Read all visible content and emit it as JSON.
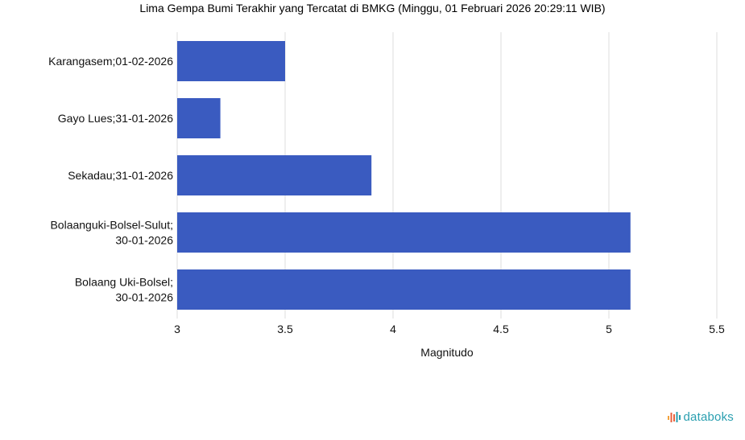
{
  "colors": {
    "bar": "#3a5bc0",
    "grid": "#dcdcdc",
    "brand": "#2a9fb0"
  },
  "brand": {
    "icon": "databoks-logo-icon",
    "text": "databoks"
  },
  "chart_data": {
    "type": "bar",
    "orientation": "horizontal",
    "title": "Lima Gempa Bumi Terakhir yang Tercatat di BMKG (Minggu, 01 Februari 2026 20:29:11 WIB)",
    "xlabel": "Magnitudo",
    "ylabel": "",
    "categories": [
      [
        "Karangasem;01-02-2026"
      ],
      [
        "Gayo Lues;31-01-2026"
      ],
      [
        "Sekadau;31-01-2026"
      ],
      [
        "Bolaanguki-Bolsel-Sulut;",
        "30-01-2026"
      ],
      [
        "Bolaang Uki-Bolsel;",
        "30-01-2026"
      ]
    ],
    "values": [
      3.5,
      3.2,
      3.9,
      5.1,
      5.1
    ],
    "xlim": [
      3,
      5.5
    ],
    "xticks": [
      "3",
      "3.5",
      "4",
      "4.5",
      "5",
      "5.5"
    ],
    "grid": true,
    "legend": "none"
  }
}
